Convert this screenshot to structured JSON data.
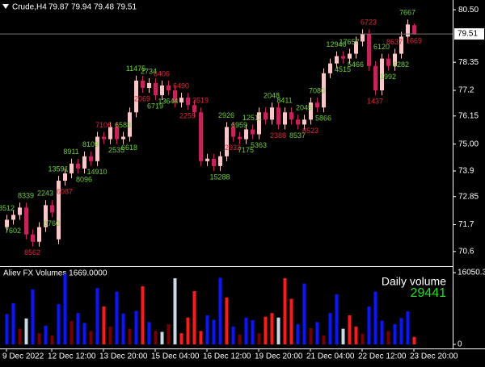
{
  "chart_data": {
    "type": "candlestick",
    "symbol": "Crude,H4",
    "open": [
      71.6,
      71.9,
      72.1,
      72.4,
      71.3,
      71.0,
      71.6,
      72.5,
      71.1,
      73.5,
      73.8,
      74.2,
      74.0,
      74.5,
      74.3,
      75.3,
      75.2,
      75.7,
      75.2,
      75.3,
      76.3,
      77.6,
      77.3,
      77.5,
      77.0,
      77.4,
      77.2,
      76.7,
      76.9,
      76.6,
      76.3,
      74.3,
      74.4,
      74.1,
      74.5,
      75.7,
      75.3,
      75.2,
      75.6,
      75.4,
      76.3,
      76.0,
      76.5,
      75.8,
      76.3,
      76.0,
      75.8,
      76.0,
      76.7,
      76.5,
      77.9,
      78.3,
      78.6,
      78.5,
      78.7,
      79.2,
      79.5,
      78.2,
      77.2,
      78.5,
      78.2,
      78.7,
      79.4,
      79.87
    ],
    "high": [
      72.1,
      72.3,
      72.6,
      72.6,
      71.5,
      71.8,
      72.7,
      72.7,
      73.7,
      74.0,
      74.4,
      74.4,
      74.7,
      74.7,
      75.5,
      75.5,
      75.9,
      75.9,
      75.5,
      76.5,
      77.8,
      77.8,
      77.7,
      77.7,
      77.6,
      77.6,
      77.4,
      77.1,
      77.1,
      76.8,
      76.5,
      74.6,
      74.6,
      74.7,
      75.9,
      75.9,
      75.5,
      75.8,
      75.8,
      76.5,
      76.5,
      76.7,
      76.7,
      76.5,
      76.5,
      76.2,
      76.2,
      76.9,
      76.9,
      78.1,
      78.5,
      78.8,
      78.8,
      78.9,
      79.4,
      79.7,
      79.7,
      78.4,
      78.7,
      78.7,
      78.9,
      79.6,
      80.1,
      79.94
    ],
    "low": [
      71.4,
      71.7,
      71.9,
      71.1,
      70.8,
      70.8,
      71.4,
      72.0,
      70.9,
      73.3,
      73.6,
      73.8,
      73.8,
      74.1,
      74.1,
      75.0,
      75.0,
      75.0,
      75.0,
      75.1,
      76.1,
      77.1,
      77.1,
      76.8,
      76.8,
      77.0,
      76.5,
      76.5,
      76.4,
      76.1,
      74.1,
      74.1,
      73.9,
      73.9,
      74.3,
      75.1,
      75.0,
      75.0,
      75.2,
      75.2,
      75.8,
      75.8,
      75.6,
      75.6,
      75.8,
      75.6,
      75.6,
      75.8,
      76.3,
      76.3,
      77.7,
      78.1,
      78.3,
      78.3,
      78.5,
      79.0,
      78.0,
      77.0,
      77.0,
      78.0,
      78.0,
      78.5,
      79.2,
      79.48
    ],
    "close": [
      71.9,
      72.1,
      72.4,
      71.3,
      71.0,
      71.6,
      72.5,
      72.2,
      73.5,
      73.8,
      74.2,
      74.0,
      74.5,
      74.3,
      75.3,
      75.2,
      75.7,
      75.2,
      75.3,
      76.3,
      77.6,
      77.3,
      77.5,
      77.0,
      77.4,
      77.2,
      76.7,
      76.9,
      76.6,
      76.3,
      74.3,
      74.4,
      74.1,
      74.5,
      75.7,
      75.3,
      75.2,
      75.6,
      75.4,
      76.3,
      76.0,
      76.5,
      75.8,
      76.3,
      76.0,
      75.8,
      76.0,
      76.7,
      76.5,
      77.9,
      78.3,
      78.6,
      78.5,
      78.7,
      79.2,
      79.5,
      78.2,
      77.2,
      78.5,
      78.2,
      78.7,
      79.4,
      79.9,
      79.51
    ],
    "bull_color": "#f8c8c8",
    "bear_color": "#c2255c",
    "ylim": [
      70.0,
      80.9
    ],
    "yticks": [
      {
        "value": 80.5,
        "label": "80.50"
      },
      78.35,
      77.2,
      76.15,
      {
        "value": 75,
        "label": "75.00"
      },
      73.9,
      72.85,
      71.7,
      70.6
    ],
    "x_labels": [
      {
        "index": 0,
        "label": "9 Dec 2022"
      },
      {
        "index": 7,
        "label": "12 Dec 12:00"
      },
      {
        "index": 15,
        "label": "13 Dec 20:00"
      },
      {
        "index": 23,
        "label": "15 Dec 04:00"
      },
      {
        "index": 31,
        "label": "16 Dec 12:00"
      },
      {
        "index": 39,
        "label": "19 Dec 20:00"
      },
      {
        "index": 47,
        "label": "21 Dec 04:00"
      },
      {
        "index": 55,
        "label": "22 Dec 12:00"
      },
      {
        "index": 63,
        "label": "23 Dec 20:00"
      }
    ],
    "annotations": [
      {
        "index": 0,
        "text": "8512",
        "color": "#6fcf3a"
      },
      {
        "index": 1,
        "text": "7602",
        "color": "#6fcf3a"
      },
      {
        "index": 3,
        "text": "8339",
        "color": "#6fcf3a"
      },
      {
        "index": 4,
        "text": "8562",
        "color": "#e0283c"
      },
      {
        "index": 6,
        "text": "2243",
        "color": "#6fcf3a"
      },
      {
        "index": 7,
        "text": "8760",
        "color": "#6fcf3a"
      },
      {
        "index": 8,
        "text": "13591",
        "color": "#6fcf3a"
      },
      {
        "index": 9,
        "text": "6087",
        "color": "#e0283c"
      },
      {
        "index": 10,
        "text": "8911",
        "color": "#6fcf3a"
      },
      {
        "index": 12,
        "text": "8096",
        "color": "#6fcf3a"
      },
      {
        "index": 13,
        "text": "8109",
        "color": "#6fcf3a"
      },
      {
        "index": 14,
        "text": "14910",
        "color": "#6fcf3a"
      },
      {
        "index": 15,
        "text": "7106",
        "color": "#e0283c"
      },
      {
        "index": 17,
        "text": "2535",
        "color": "#6fcf3a"
      },
      {
        "index": 18,
        "text": "6583",
        "color": "#6fcf3a"
      },
      {
        "index": 19,
        "text": "6618",
        "color": "#6fcf3a"
      },
      {
        "index": 20,
        "text": "11475",
        "color": "#6fcf3a"
      },
      {
        "index": 21,
        "text": "2069",
        "color": "#e0283c"
      },
      {
        "index": 22,
        "text": "2734",
        "color": "#6fcf3a"
      },
      {
        "index": 23,
        "text": "6719",
        "color": "#6fcf3a"
      },
      {
        "index": 24,
        "text": "6406",
        "color": "#e0283c"
      },
      {
        "index": 25,
        "text": "13644",
        "color": "#6fcf3a"
      },
      {
        "index": 27,
        "text": "6490",
        "color": "#e0283c"
      },
      {
        "index": 28,
        "text": "2259",
        "color": "#e0283c"
      },
      {
        "index": 30,
        "text": "3519",
        "color": "#e0283c"
      },
      {
        "index": 33,
        "text": "15288",
        "color": "#6fcf3a"
      },
      {
        "index": 34,
        "text": "2926",
        "color": "#6fcf3a"
      },
      {
        "index": 35,
        "text": "2932",
        "color": "#e0283c"
      },
      {
        "index": 36,
        "text": "6959",
        "color": "#6fcf3a"
      },
      {
        "index": 37,
        "text": "7175",
        "color": "#6fcf3a"
      },
      {
        "index": 38,
        "text": "12511",
        "color": "#6fcf3a"
      },
      {
        "index": 39,
        "text": "5363",
        "color": "#6fcf3a"
      },
      {
        "index": 41,
        "text": "2048",
        "color": "#6fcf3a"
      },
      {
        "index": 42,
        "text": "2388",
        "color": "#e0283c"
      },
      {
        "index": 43,
        "text": "8411",
        "color": "#6fcf3a"
      },
      {
        "index": 45,
        "text": "8537",
        "color": "#6fcf3a"
      },
      {
        "index": 46,
        "text": "2045",
        "color": "#6fcf3a"
      },
      {
        "index": 47,
        "text": "8523",
        "color": "#e0283c"
      },
      {
        "index": 48,
        "text": "7080",
        "color": "#6fcf3a"
      },
      {
        "index": 49,
        "text": "5866",
        "color": "#6fcf3a"
      },
      {
        "index": 51,
        "text": "12940",
        "color": "#6fcf3a"
      },
      {
        "index": 52,
        "text": "4515",
        "color": "#6fcf3a"
      },
      {
        "index": 53,
        "text": "17657",
        "color": "#6fcf3a"
      },
      {
        "index": 54,
        "text": "5466",
        "color": "#6fcf3a"
      },
      {
        "index": 56,
        "text": "6723",
        "color": "#e0283c"
      },
      {
        "index": 57,
        "text": "1437",
        "color": "#e0283c"
      },
      {
        "index": 58,
        "text": "6120",
        "color": "#6fcf3a"
      },
      {
        "index": 59,
        "text": "1992",
        "color": "#6fcf3a"
      },
      {
        "index": 60,
        "text": "8637",
        "color": "#e0283c"
      },
      {
        "index": 61,
        "text": "6282",
        "color": "#6fcf3a"
      },
      {
        "index": 62,
        "text": "7667",
        "color": "#6fcf3a"
      },
      {
        "index": 63,
        "text": "1669",
        "color": "#e0283c"
      }
    ],
    "volume": {
      "title": "Aliev FX Volumes 1669.0000",
      "values": [
        6800,
        9200,
        3500,
        5800,
        12300,
        2500,
        4200,
        2000,
        9000,
        15800,
        5200,
        7000,
        4800,
        3000,
        12600,
        8500,
        4000,
        11800,
        6900,
        3500,
        7500,
        13000,
        5000,
        3000,
        2800,
        4500,
        14800,
        2500,
        6000,
        11900,
        3000,
        6500,
        5500,
        14900,
        10500,
        4000,
        2200,
        6000,
        5400,
        2500,
        6200,
        7000,
        6000,
        14800,
        10200,
        4500,
        13600,
        3600,
        5000,
        2000,
        7000,
        11200,
        3500,
        6500,
        4000,
        2400,
        8500,
        11800,
        5300,
        3000,
        4500,
        5900,
        7400,
        1669
      ],
      "colors": [
        "#0a14ff",
        "#0a14ff",
        "#7a0000",
        "#c9d9e6",
        "#0a14ff",
        "#7a0000",
        "#0a14ff",
        "#7a0000",
        "#0a14ff",
        "#0a14ff",
        "#7a0000",
        "#0a14ff",
        "#0a14ff",
        "#7a0000",
        "#0a14ff",
        "#ff1a1a",
        "#7a0000",
        "#0a14ff",
        "#0a14ff",
        "#7a0000",
        "#0a14ff",
        "#ff1a1a",
        "#0a14ff",
        "#7a0000",
        "#c9d9e6",
        "#7a0000",
        "#c9d9e6",
        "#ff1a1a",
        "#ff1a1a",
        "#ff1a1a",
        "#ff1a1a",
        "#0a14ff",
        "#0a14ff",
        "#0a14ff",
        "#ff1a1a",
        "#0a14ff",
        "#7a0000",
        "#0a14ff",
        "#0a14ff",
        "#7a0000",
        "#ff1a1a",
        "#ff1a1a",
        "#c9d9e6",
        "#ff1a1a",
        "#ff1a1a",
        "#0a14ff",
        "#0a14ff",
        "#7a0000",
        "#0a14ff",
        "#7a0000",
        "#0a14ff",
        "#0a14ff",
        "#c9d9e6",
        "#ff1a1a",
        "#ff1a1a",
        "#7a0000",
        "#0a14ff",
        "#0a14ff",
        "#0a14ff",
        "#7a0000",
        "#0a14ff",
        "#0a14ff",
        "#0a14ff",
        "#ff1a1a"
      ],
      "ylim": [
        0,
        16050.3
      ],
      "yticks": [
        16050.3,
        0
      ],
      "daily_label": "Daily volume",
      "daily_value": 29441
    }
  }
}
